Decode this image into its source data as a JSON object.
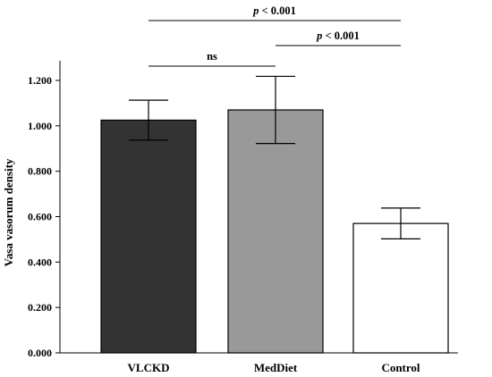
{
  "chart_data": {
    "type": "bar",
    "title": "",
    "xlabel": "",
    "ylabel": "Vasa vasorum density",
    "ylim": [
      0,
      1.3
    ],
    "yticks": [
      0,
      0.2,
      0.4,
      0.6,
      0.8,
      1.0,
      1.2
    ],
    "ytick_labels": [
      "0.000",
      "0.200",
      "0.400",
      "0.600",
      "0.800",
      "1.000",
      "1.200"
    ],
    "categories": [
      "VLCKD",
      "MedDiet",
      "Control"
    ],
    "values": [
      1.025,
      1.07,
      0.57
    ],
    "errors": [
      0.088,
      0.148,
      0.068
    ],
    "colors": [
      "#333333",
      "#999999",
      "#ffffff"
    ],
    "grid": false,
    "significance": [
      {
        "from": 0,
        "to": 1,
        "label": "ns",
        "italic_part": "",
        "rest": "ns"
      },
      {
        "from": 1,
        "to": 2,
        "label": "p < 0.001",
        "italic_part": "p",
        "rest": " < 0.001"
      },
      {
        "from": 0,
        "to": 2,
        "label": "p < 0.001",
        "italic_part": "p",
        "rest": " < 0.001"
      }
    ]
  }
}
